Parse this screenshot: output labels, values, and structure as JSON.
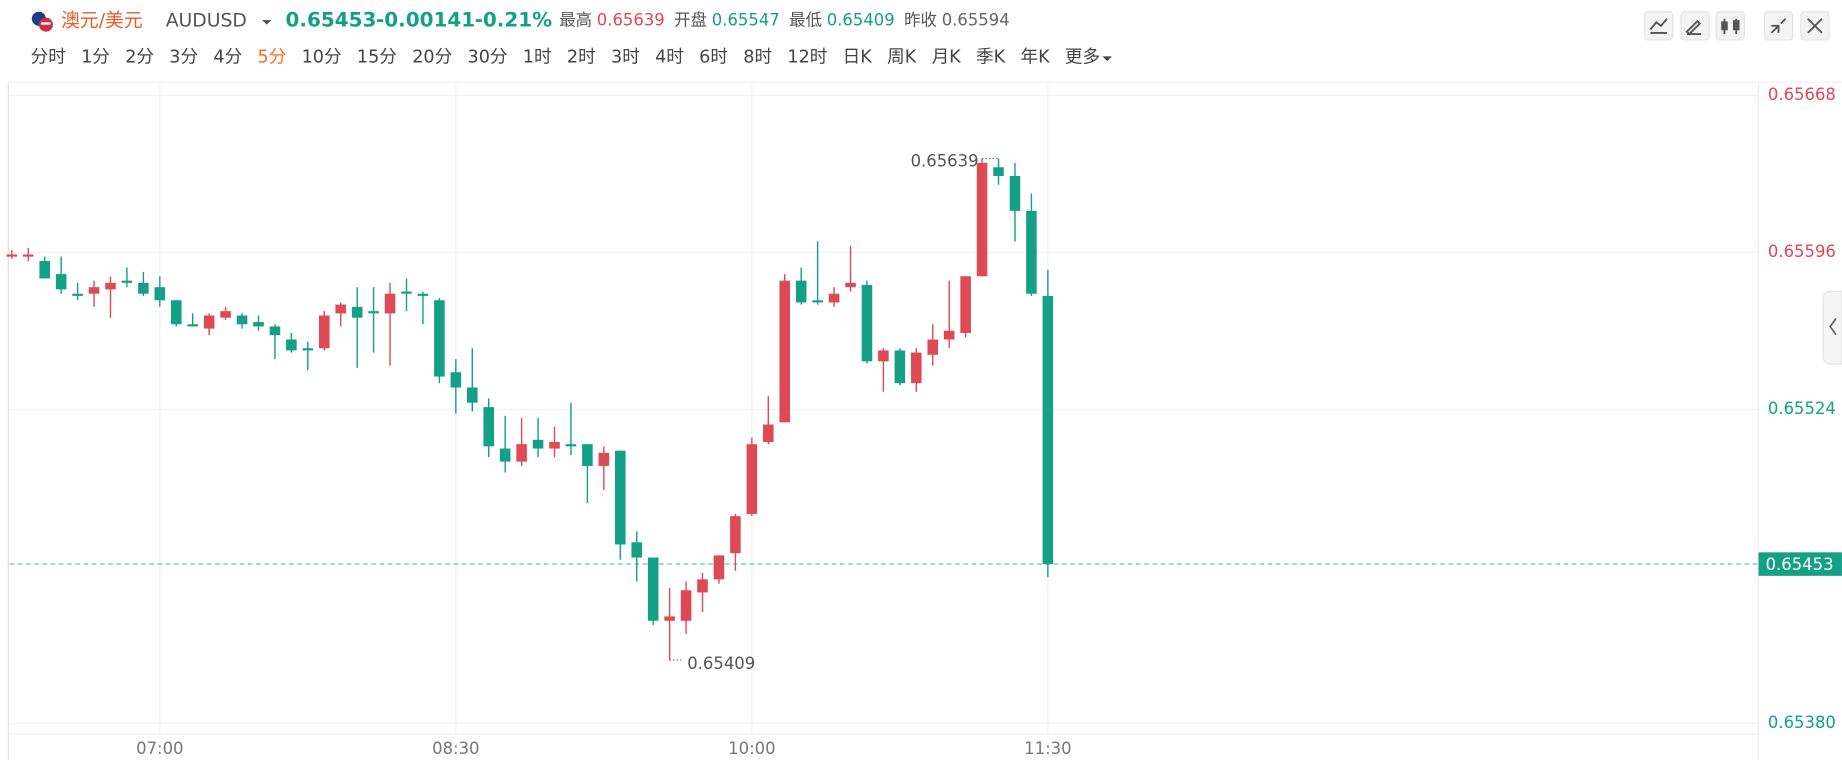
{
  "header": {
    "pair": "澳元/美元",
    "symbol": "AUDUSD",
    "last": 0.65453,
    "change": -0.00141,
    "change_pct": "-0.21%",
    "stats": [
      {
        "label": "最高",
        "value": 0.65639
      },
      {
        "label": "开盘",
        "value": 0.65547
      },
      {
        "label": "最低",
        "value": 0.65409
      },
      {
        "label": "昨收",
        "value": 0.65594
      }
    ],
    "timeframes": [
      "分时",
      "1分",
      "2分",
      "3分",
      "4分",
      "5分",
      "10分",
      "15分",
      "20分",
      "30分",
      "1时",
      "2时",
      "3时",
      "4时",
      "6时",
      "8时",
      "12时",
      "日K",
      "周K",
      "月K",
      "季K",
      "年K",
      "更多"
    ],
    "active_timeframe": 5
  },
  "chart_data": {
    "type": "candlestick",
    "categories": [
      null,
      null,
      null,
      null,
      null,
      null,
      null,
      null,
      null,
      "07:00",
      null,
      null,
      null,
      null,
      null,
      null,
      null,
      null,
      null,
      null,
      null,
      null,
      null,
      null,
      null,
      null,
      null,
      "08:30",
      null,
      null,
      null,
      null,
      null,
      null,
      null,
      null,
      null,
      null,
      null,
      null,
      null,
      null,
      null,
      null,
      null,
      "10:00",
      null,
      null,
      null,
      null,
      null,
      null,
      null,
      null,
      null,
      null,
      null,
      null,
      null,
      null,
      null,
      null,
      null,
      "11:30"
    ],
    "open": [
      0.65594,
      0.65594,
      0.65592,
      0.65586,
      0.65577,
      0.65577,
      0.65579,
      0.65583,
      0.65582,
      0.6558,
      0.65574,
      0.65563,
      0.65561,
      0.65566,
      0.65567,
      0.65564,
      0.65562,
      0.65556,
      0.65552,
      0.65552,
      0.65568,
      0.65571,
      0.65569,
      0.65568,
      0.65578,
      0.65577,
      0.65574,
      0.65541,
      0.65534,
      0.65525,
      0.65506,
      0.655,
      0.6551,
      0.65506,
      0.65508,
      0.65508,
      0.65498,
      0.65505,
      0.65463,
      0.65456,
      0.65427,
      0.65427,
      0.6544,
      0.65446,
      0.65458,
      0.65476,
      0.65509,
      0.65518,
      0.65583,
      0.65574,
      0.65573,
      0.6558,
      0.65581,
      0.65546,
      0.65551,
      0.65536,
      0.65549,
      0.65556,
      0.65559,
      0.65585,
      0.65635,
      0.65631,
      0.65615,
      0.65576
    ],
    "high": [
      0.65597,
      0.65598,
      0.65594,
      0.65594,
      0.65582,
      0.65583,
      0.65585,
      0.65589,
      0.65587,
      0.65585,
      0.65574,
      0.65568,
      0.65568,
      0.65571,
      0.65568,
      0.65567,
      0.65563,
      0.65559,
      0.65555,
      0.65569,
      0.65573,
      0.6558,
      0.6558,
      0.65582,
      0.65584,
      0.65578,
      0.65575,
      0.65547,
      0.65552,
      0.65529,
      0.65521,
      0.6552,
      0.6552,
      0.65516,
      0.65527,
      0.65508,
      0.65507,
      0.65505,
      0.65468,
      0.65456,
      0.65442,
      0.65445,
      0.65449,
      0.65457,
      0.65476,
      0.65511,
      0.6553,
      0.65586,
      0.65589,
      0.65601,
      0.6558,
      0.65599,
      0.65583,
      0.65552,
      0.65552,
      0.65552,
      0.65563,
      0.65583,
      0.65585,
      0.65639,
      0.65639,
      0.65637,
      0.65623,
      0.65588
    ],
    "low": [
      0.65593,
      0.65592,
      0.65584,
      0.65577,
      0.65574,
      0.65571,
      0.65566,
      0.6558,
      0.65576,
      0.65571,
      0.65562,
      0.65562,
      0.65558,
      0.65565,
      0.65561,
      0.6556,
      0.65547,
      0.6555,
      0.65542,
      0.65551,
      0.65562,
      0.65543,
      0.6555,
      0.65544,
      0.65569,
      0.65563,
      0.65536,
      0.65522,
      0.65523,
      0.65502,
      0.65495,
      0.65498,
      0.65502,
      0.65502,
      0.65503,
      0.65481,
      0.65487,
      0.65455,
      0.65445,
      0.65425,
      0.65409,
      0.65421,
      0.65431,
      0.65444,
      0.6545,
      0.65475,
      0.65508,
      0.65518,
      0.65572,
      0.65572,
      0.65571,
      0.65578,
      0.65545,
      0.65532,
      0.65535,
      0.65532,
      0.65544,
      0.65552,
      0.65557,
      0.65585,
      0.65627,
      0.65601,
      0.65576,
      0.65447
    ],
    "close": [
      0.65595,
      0.65595,
      0.65584,
      0.65579,
      0.65576,
      0.6558,
      0.65582,
      0.65582,
      0.65577,
      0.65574,
      0.65563,
      0.65562,
      0.65567,
      0.65569,
      0.65563,
      0.65562,
      0.65558,
      0.65551,
      0.65551,
      0.65567,
      0.65572,
      0.65566,
      0.65568,
      0.65577,
      0.65577,
      0.65576,
      0.65539,
      0.65534,
      0.65527,
      0.65507,
      0.655,
      0.65508,
      0.65506,
      0.65509,
      0.65507,
      0.65498,
      0.65504,
      0.65462,
      0.65456,
      0.65427,
      0.65429,
      0.65441,
      0.65446,
      0.65457,
      0.65475,
      0.65508,
      0.65517,
      0.65583,
      0.65573,
      0.65573,
      0.65577,
      0.65582,
      0.65546,
      0.65551,
      0.65536,
      0.6555,
      0.65556,
      0.6556,
      0.65585,
      0.65637,
      0.65631,
      0.65615,
      0.65577,
      0.65453
    ],
    "up_color": "#dd4a55",
    "down_color": "#14a087",
    "ylim": [
      0.65375,
      0.65674
    ],
    "yticks": [
      {
        "value": 0.6538,
        "label": "0.65380"
      },
      0.65524,
      0.65596,
      0.65668
    ],
    "grid": true,
    "prev_close": 0.65594,
    "max_label": 0.65639,
    "min_label": 0.65409,
    "last_price": 0.65453
  }
}
